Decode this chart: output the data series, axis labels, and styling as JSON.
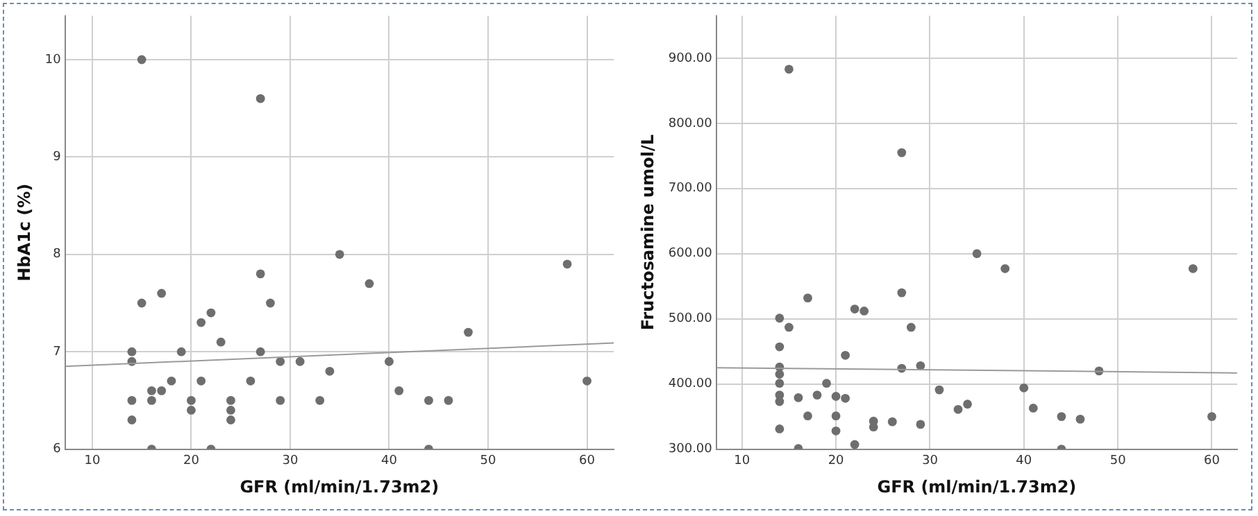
{
  "chart_data": [
    {
      "type": "scatter",
      "xlabel": "GFR (ml/min/1.73m2)",
      "ylabel": "HbA1c (%)",
      "xlim": [
        7.25,
        62.7
      ],
      "xticks": [
        10,
        20,
        30,
        40,
        50,
        60
      ],
      "ylim": [
        6,
        10.45
      ],
      "yticks": [
        6,
        7,
        8,
        9,
        10
      ],
      "grid": true,
      "legend": false,
      "marker": "circle",
      "series": [
        {
          "type": "scatter",
          "color": "#6e6e6e",
          "x": [
            15,
            27,
            27,
            17,
            15,
            28,
            22,
            21,
            23,
            14,
            19,
            27,
            14,
            29,
            31,
            18,
            21,
            26,
            16,
            17,
            14,
            16,
            20,
            24,
            29,
            20,
            24,
            14,
            24,
            16,
            22,
            33,
            34,
            35,
            38,
            48,
            40,
            41,
            44,
            46,
            44,
            58,
            60
          ],
          "values": [
            10,
            9.6,
            7.8,
            7.6,
            7.5,
            7.5,
            7.4,
            7.3,
            7.1,
            7,
            7,
            7,
            6.9,
            6.9,
            6.9,
            6.7,
            6.7,
            6.7,
            6.6,
            6.6,
            6.5,
            6.5,
            6.5,
            6.5,
            6.5,
            6.4,
            6.4,
            6.3,
            6.3,
            6,
            6,
            6.5,
            6.8,
            8,
            7.7,
            7.2,
            6.9,
            6.6,
            6.5,
            6.5,
            6,
            7.9,
            6.7
          ]
        },
        {
          "type": "line",
          "color": "#9a9a9a",
          "marker": "none",
          "x": [
            7.25,
            62.7
          ],
          "values": [
            6.85,
            7.09
          ]
        }
      ]
    },
    {
      "type": "scatter",
      "xlabel": "GFR (ml/min/1.73m2)",
      "ylabel": "Fructosamine umol/L",
      "xlim": [
        7.27,
        62.7
      ],
      "xticks": [
        10,
        20,
        30,
        40,
        50,
        60
      ],
      "ylim": [
        300,
        965
      ],
      "yticks": [
        {
          "value": 300,
          "label": "300.00"
        },
        {
          "value": 400,
          "label": "400.00"
        },
        {
          "value": 500,
          "label": "500.00"
        },
        {
          "value": 600,
          "label": "600.00"
        },
        {
          "value": 700,
          "label": "700.00"
        },
        {
          "value": 800,
          "label": "800.00"
        },
        {
          "value": 900,
          "label": "900.00"
        }
      ],
      "grid": true,
      "legend": false,
      "marker": "circle",
      "series": [
        {
          "type": "scatter",
          "color": "#6e6e6e",
          "x": [
            15,
            27,
            17,
            27,
            22,
            23,
            14,
            15,
            28,
            14,
            21,
            14,
            27,
            29,
            14,
            14,
            19,
            31,
            14,
            16,
            18,
            20,
            21,
            14,
            17,
            20,
            24,
            24,
            26,
            29,
            14,
            20,
            22,
            16,
            33,
            34,
            35,
            38,
            48,
            40,
            41,
            44,
            46,
            44,
            58,
            60
          ],
          "values": [
            883,
            755,
            532,
            540,
            515,
            512,
            501,
            487,
            487,
            457,
            444,
            426,
            424,
            428,
            415,
            401,
            401,
            391,
            383,
            379,
            383,
            381,
            378,
            373,
            351,
            351,
            343,
            334,
            342,
            338,
            331,
            328,
            307,
            301,
            361,
            369,
            600,
            577,
            420,
            394,
            363,
            350,
            346,
            300,
            577,
            350
          ]
        },
        {
          "type": "line",
          "color": "#9a9a9a",
          "marker": "none",
          "x": [
            7.27,
            62.7
          ],
          "values": [
            425,
            417
          ]
        }
      ]
    }
  ]
}
